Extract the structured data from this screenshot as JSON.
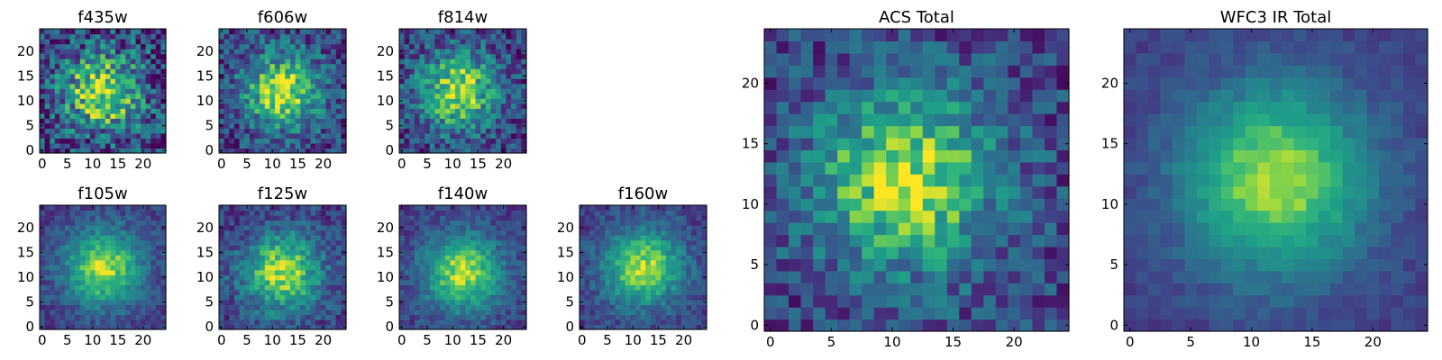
{
  "chart_data": [
    {
      "type": "heatmap",
      "title": "f435w",
      "colormap": "viridis",
      "xticks": [
        0,
        5,
        10,
        15,
        20
      ],
      "yticks": [
        0,
        5,
        10,
        15,
        20
      ],
      "xlim": [
        -0.5,
        24.5
      ],
      "ylim": [
        -0.5,
        24.5
      ],
      "grid_size": [
        25,
        25
      ],
      "peak_center": [
        12,
        12
      ],
      "noise": 0.4
    },
    {
      "type": "heatmap",
      "title": "f606w",
      "colormap": "viridis",
      "xticks": [
        0,
        5,
        10,
        15,
        20
      ],
      "yticks": [
        0,
        5,
        10,
        15,
        20
      ],
      "xlim": [
        -0.5,
        24.5
      ],
      "ylim": [
        -0.5,
        24.5
      ],
      "grid_size": [
        25,
        25
      ],
      "peak_center": [
        12,
        12
      ],
      "noise": 0.3
    },
    {
      "type": "heatmap",
      "title": "f814w",
      "colormap": "viridis",
      "xticks": [
        0,
        5,
        10,
        15,
        20
      ],
      "yticks": [
        0,
        5,
        10,
        15,
        20
      ],
      "xlim": [
        -0.5,
        24.5
      ],
      "ylim": [
        -0.5,
        24.5
      ],
      "grid_size": [
        25,
        25
      ],
      "peak_center": [
        11,
        12
      ],
      "noise": 0.3
    },
    {
      "type": "heatmap",
      "title": "f105w",
      "colormap": "viridis",
      "xticks": [
        0,
        5,
        10,
        15,
        20
      ],
      "yticks": [
        0,
        5,
        10,
        15,
        20
      ],
      "xlim": [
        -0.5,
        24.5
      ],
      "ylim": [
        -0.5,
        24.5
      ],
      "grid_size": [
        25,
        25
      ],
      "peak_center": [
        12,
        12
      ],
      "noise": 0.15
    },
    {
      "type": "heatmap",
      "title": "f125w",
      "colormap": "viridis",
      "xticks": [
        0,
        5,
        10,
        15,
        20
      ],
      "yticks": [
        0,
        5,
        10,
        15,
        20
      ],
      "xlim": [
        -0.5,
        24.5
      ],
      "ylim": [
        -0.5,
        24.5
      ],
      "grid_size": [
        25,
        25
      ],
      "peak_center": [
        12,
        11
      ],
      "noise": 0.2
    },
    {
      "type": "heatmap",
      "title": "f140w",
      "colormap": "viridis",
      "xticks": [
        0,
        5,
        10,
        15,
        20
      ],
      "yticks": [
        0,
        5,
        10,
        15,
        20
      ],
      "xlim": [
        -0.5,
        24.5
      ],
      "ylim": [
        -0.5,
        24.5
      ],
      "grid_size": [
        25,
        25
      ],
      "peak_center": [
        12,
        11
      ],
      "noise": 0.15
    },
    {
      "type": "heatmap",
      "title": "f160w",
      "colormap": "viridis",
      "xticks": [
        0,
        5,
        10,
        15,
        20
      ],
      "yticks": [
        0,
        5,
        10,
        15,
        20
      ],
      "xlim": [
        -0.5,
        24.5
      ],
      "ylim": [
        -0.5,
        24.5
      ],
      "grid_size": [
        25,
        25
      ],
      "peak_center": [
        12,
        12
      ],
      "noise": 0.15
    },
    {
      "type": "heatmap",
      "title": "ACS Total",
      "colormap": "viridis",
      "xticks": [
        0,
        5,
        10,
        15,
        20
      ],
      "yticks": [
        0,
        5,
        10,
        15,
        20
      ],
      "xlim": [
        -0.5,
        24.5
      ],
      "ylim": [
        -0.5,
        24.5
      ],
      "grid_size": [
        25,
        25
      ],
      "peak_center": [
        11,
        12
      ],
      "noise": 0.25
    },
    {
      "type": "heatmap",
      "title": "WFC3 IR Total",
      "colormap": "viridis",
      "xticks": [
        0,
        5,
        10,
        15,
        20
      ],
      "yticks": [
        0,
        5,
        10,
        15,
        20
      ],
      "xlim": [
        -0.5,
        24.5
      ],
      "ylim": [
        -0.5,
        24.5
      ],
      "grid_size": [
        25,
        25
      ],
      "peak_center": [
        12,
        12
      ],
      "noise": 0.08
    }
  ]
}
